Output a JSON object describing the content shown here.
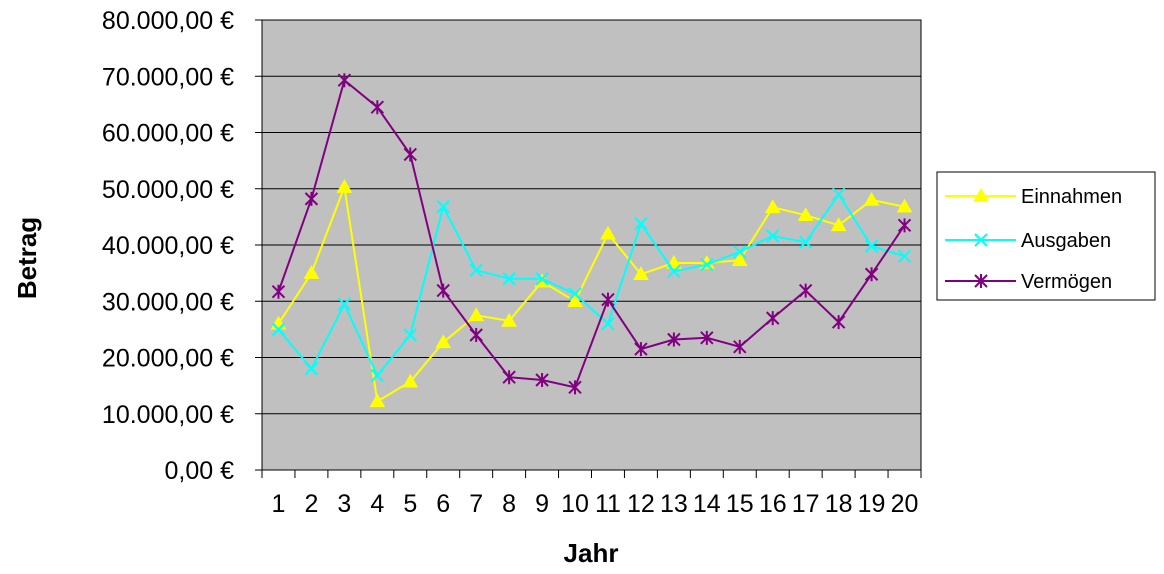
{
  "chart_data": {
    "type": "line",
    "title": "",
    "xlabel": "Jahr",
    "ylabel": "Betrag",
    "categories": [
      "1",
      "2",
      "3",
      "4",
      "5",
      "6",
      "7",
      "8",
      "9",
      "10",
      "11",
      "12",
      "13",
      "14",
      "15",
      "16",
      "17",
      "18",
      "19",
      "20"
    ],
    "ylim": [
      0,
      80000
    ],
    "y_ticks": [
      0,
      10000,
      20000,
      30000,
      40000,
      50000,
      60000,
      70000,
      80000
    ],
    "y_tick_labels": [
      "0,00 €",
      "10.000,00 €",
      "20.000,00 €",
      "30.000,00 €",
      "40.000,00 €",
      "50.000,00 €",
      "60.000,00 €",
      "70.000,00 €",
      "80.000,00 €"
    ],
    "grid": true,
    "plot_background": "#c0c0c0",
    "legend_position": "right",
    "series": [
      {
        "name": "Einnahmen",
        "color": "#ffff00",
        "marker": "triangle",
        "values": [
          26000,
          35000,
          50300,
          12200,
          15700,
          22700,
          27500,
          26500,
          33500,
          30000,
          42000,
          34800,
          36800,
          36800,
          37300,
          46700,
          45300,
          43500,
          48000,
          46800
        ]
      },
      {
        "name": "Ausgaben",
        "color": "#00ffff",
        "marker": "x",
        "values": [
          25000,
          18000,
          29500,
          16800,
          24000,
          46800,
          35500,
          34000,
          34000,
          31300,
          26000,
          43800,
          35300,
          36500,
          38800,
          41600,
          40500,
          49000,
          39800,
          38000
        ]
      },
      {
        "name": "Vermögen",
        "color": "#800080",
        "marker": "asterisk",
        "values": [
          31700,
          48200,
          69300,
          64500,
          56100,
          31900,
          24000,
          16500,
          16000,
          14700,
          30300,
          21500,
          23200,
          23500,
          21900,
          27000,
          31900,
          26300,
          34800,
          43500
        ]
      }
    ]
  }
}
